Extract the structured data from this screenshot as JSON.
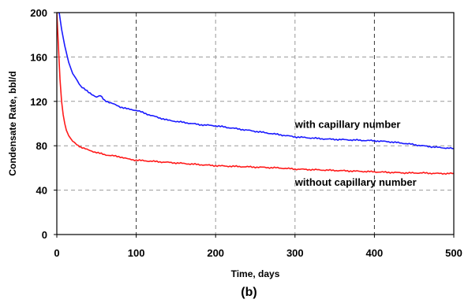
{
  "chart_data": {
    "type": "line",
    "xlabel": "Time, days",
    "ylabel": "Condensate Rate, bbl/d",
    "xlim": [
      0,
      500
    ],
    "ylim": [
      0,
      200
    ],
    "xticks": [
      "0",
      "100",
      "200",
      "300",
      "400",
      "500"
    ],
    "yticks": [
      "0",
      "40",
      "80",
      "120",
      "160",
      "200"
    ],
    "grid": true,
    "caption": "(b)",
    "colors": {
      "with_capillary": "#1a1aff",
      "without_capillary": "#ff1a1a",
      "grid": "#999999",
      "axis": "#000000"
    },
    "series": [
      {
        "name": "with capillary number",
        "color": "#1a1aff",
        "x": [
          0,
          3,
          6,
          10,
          15,
          20,
          30,
          40,
          50,
          55,
          60,
          70,
          80,
          90,
          100,
          120,
          140,
          160,
          180,
          200,
          220,
          240,
          260,
          280,
          300,
          320,
          340,
          360,
          380,
          400,
          420,
          440,
          460,
          480,
          500
        ],
        "y": [
          200,
          200,
          185,
          170,
          155,
          145,
          134,
          128,
          124,
          125,
          121,
          118,
          115,
          113,
          112,
          107,
          103,
          101,
          99,
          98,
          96,
          94,
          92,
          90,
          88,
          87,
          86,
          85.5,
          85,
          84.5,
          83.5,
          82,
          80,
          78.5,
          77.5
        ]
      },
      {
        "name": "without capillary number",
        "color": "#ff1a1a",
        "x": [
          0,
          2,
          4,
          6,
          8,
          10,
          12,
          15,
          20,
          25,
          30,
          40,
          50,
          60,
          70,
          80,
          90,
          100,
          120,
          140,
          160,
          180,
          200,
          220,
          240,
          260,
          280,
          300,
          320,
          340,
          360,
          380,
          400,
          420,
          440,
          460,
          480,
          500
        ],
        "y": [
          200,
          170,
          140,
          120,
          108,
          100,
          94,
          89,
          84,
          81,
          79,
          76,
          74,
          72,
          71,
          70,
          68,
          67,
          66,
          65,
          64,
          63,
          62,
          61.5,
          61,
          60.5,
          60,
          59,
          58.5,
          58,
          57.5,
          57,
          56.5,
          56,
          55.5,
          55.5,
          55,
          55
        ]
      }
    ],
    "annotations": [
      {
        "text": "with capillary number",
        "x": 300,
        "y": 96
      },
      {
        "text": "without capillary number",
        "x": 300,
        "y": 44
      }
    ]
  }
}
